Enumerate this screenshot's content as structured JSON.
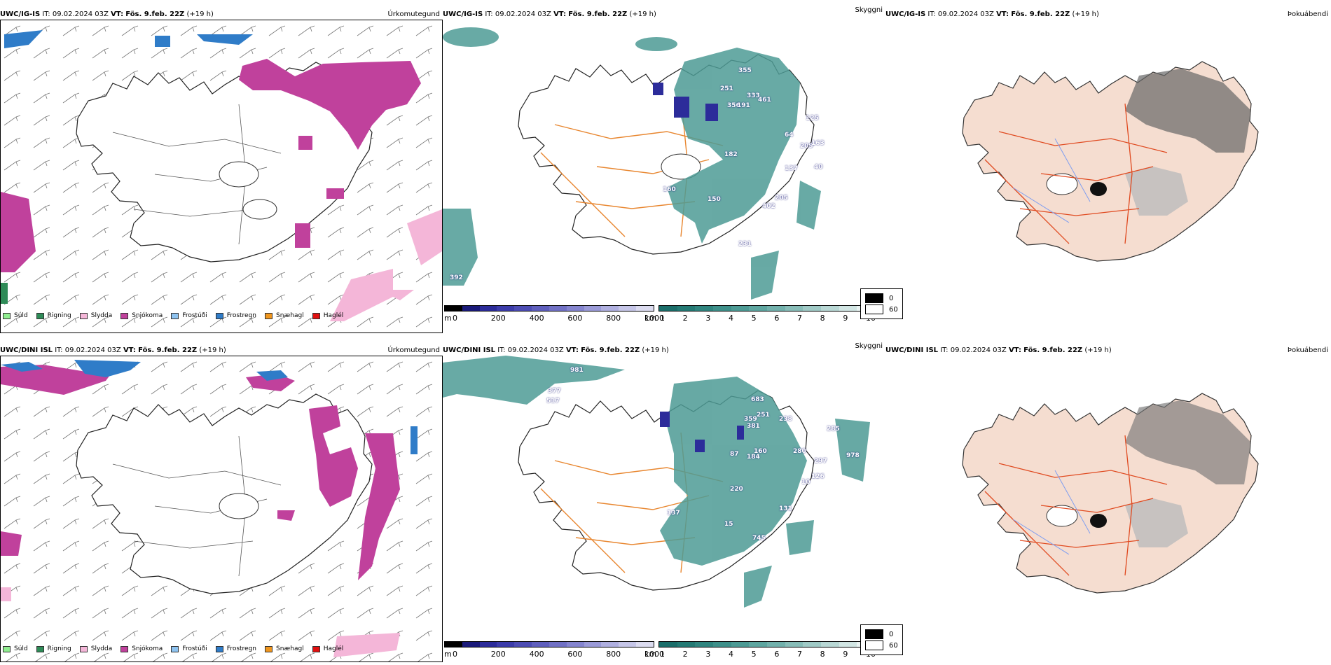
{
  "top": {
    "left": {
      "model": "UWC/IG-IS",
      "it_label": "IT:",
      "it_value": "09.02.2024 03Z",
      "vt_label": "VT:",
      "vt_value": "Fös. 9.feb. 22Z",
      "lead": "(+19 h)",
      "title": "Úrkomutegund"
    },
    "mid": {
      "model": "UWC/IG-IS",
      "it_label": "IT:",
      "it_value": "09.02.2024 03Z",
      "vt_label": "VT:",
      "vt_value": "Fös. 9.feb. 22Z",
      "lead": "(+19 h)",
      "title": "Skyggni"
    },
    "right": {
      "model": "UWC/IG-IS",
      "it_label": "IT:",
      "it_value": "09.02.2024 03Z",
      "vt_label": "VT:",
      "vt_value": "Fös. 9.feb. 22Z",
      "lead": "(+19 h)",
      "title": "Þokuábendi"
    },
    "labels": [
      "355",
      "251",
      "333",
      "356",
      "191",
      "461",
      "125",
      "64",
      "209",
      "163",
      "137",
      "40",
      "160",
      "150",
      "205",
      "402",
      "231",
      "392",
      "182"
    ]
  },
  "bottom": {
    "left": {
      "model": "UWC/DINI ISL",
      "it_label": "IT:",
      "it_value": "09.02.2024 03Z",
      "vt_label": "VT:",
      "vt_value": "Fös. 9.feb. 22Z",
      "lead": "(+19 h)",
      "title": "Úrkomutegund"
    },
    "mid": {
      "model": "UWC/DINI ISL",
      "it_label": "IT:",
      "it_value": "09.02.2024 03Z",
      "vt_label": "VT:",
      "vt_value": "Fös. 9.feb. 22Z",
      "lead": "(+19 h)",
      "title": "Skyggni"
    },
    "right": {
      "model": "UWC/DINI ISL",
      "it_label": "IT:",
      "it_value": "09.02.2024 03Z",
      "vt_label": "VT:",
      "vt_value": "Fös. 9.feb. 22Z",
      "lead": "(+19 h)",
      "title": "Þokuábendi"
    },
    "labels": [
      "981",
      "377",
      "517",
      "683",
      "381",
      "238",
      "359",
      "251",
      "285",
      "160",
      "280",
      "87",
      "184",
      "297",
      "126",
      "220",
      "137",
      "131",
      "15",
      "745",
      "978",
      "10"
    ]
  },
  "precip_legend": [
    {
      "label": "Súld",
      "color": "#90ee90"
    },
    {
      "label": "Rigning",
      "color": "#2e8b57"
    },
    {
      "label": "Slydda",
      "color": "#f4b6d8"
    },
    {
      "label": "Snjókoma",
      "color": "#c0419c"
    },
    {
      "label": "Frostúði",
      "color": "#8ec3f0"
    },
    {
      "label": "Frostregn",
      "color": "#2f7cc8"
    },
    {
      "label": "Snæhagl",
      "color": "#f0961e"
    },
    {
      "label": "Haglél",
      "color": "#e01010"
    }
  ],
  "ceiling_scale": {
    "unit": "m",
    "ticks": [
      "0",
      "200",
      "400",
      "600",
      "800",
      "1000"
    ],
    "colors": [
      "#000000",
      "#1a1a7a",
      "#2c2c9a",
      "#3c3caa",
      "#4d4db4",
      "#5f5fbd",
      "#7171c5",
      "#8585cf",
      "#9b9bd8",
      "#b0b0e0",
      "#c6c6e8",
      "#dcdcf0"
    ]
  },
  "vis_scale": {
    "unit": "km",
    "ticks": [
      "1",
      "2",
      "3",
      "4",
      "5",
      "6",
      "7",
      "8",
      "9",
      "10"
    ],
    "colors": [
      "#1b6e6a",
      "#247a74",
      "#30857f",
      "#3e908a",
      "#4d9b95",
      "#5ea6a0",
      "#72b1ac",
      "#88bdb8",
      "#a0cac6",
      "#b9d8d5",
      "#d2e6e4",
      "#ebf4f3"
    ]
  },
  "fog_legend": [
    {
      "label": "0",
      "color": "#000000"
    },
    {
      "label": "60",
      "color": "#ffffff"
    }
  ]
}
